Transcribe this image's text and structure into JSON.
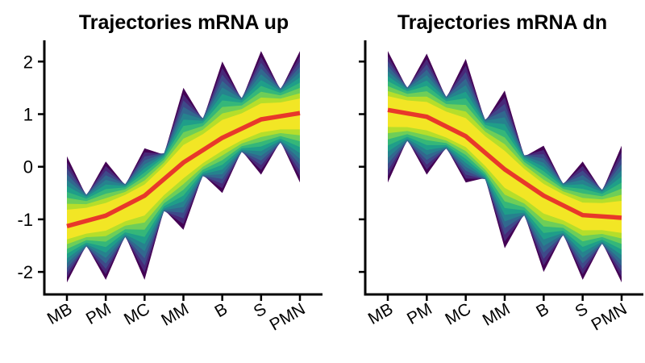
{
  "chart_data": [
    {
      "type": "line",
      "title": "Trajectories mRNA up",
      "categories": [
        "MB",
        "PM",
        "MC",
        "MM",
        "B",
        "S",
        "PMN"
      ],
      "ylim": [
        -2.3,
        2.35
      ],
      "yticks": [
        "-2",
        "-1",
        "0",
        "1",
        "2"
      ],
      "grid": false,
      "mean_line": {
        "color": "#e8382a",
        "values": [
          -1.13,
          -0.93,
          -0.55,
          0.08,
          0.55,
          0.9,
          1.02
        ]
      },
      "trajectory_range": {
        "max": [
          0.2,
          0.1,
          0.35,
          1.5,
          2.0,
          2.2,
          2.2
        ],
        "min": [
          -2.2,
          -2.15,
          -2.15,
          -1.2,
          -0.5,
          -0.15,
          -0.3
        ]
      },
      "colormap": [
        "#440154",
        "#482878",
        "#3e4989",
        "#31688e",
        "#26828e",
        "#1f9e89",
        "#35b779",
        "#6ece58",
        "#b5de2b",
        "#fde725"
      ]
    },
    {
      "type": "line",
      "title": "Trajectories mRNA dn",
      "categories": [
        "MB",
        "PM",
        "MC",
        "MM",
        "B",
        "S",
        "PMN"
      ],
      "ylim": [
        -2.3,
        2.35
      ],
      "yticks": [
        "-2",
        "-1",
        "0",
        "1",
        "2"
      ],
      "grid": false,
      "mean_line": {
        "color": "#e8382a",
        "values": [
          1.08,
          0.95,
          0.58,
          -0.05,
          -0.55,
          -0.92,
          -0.97
        ]
      },
      "trajectory_range": {
        "max": [
          2.2,
          2.15,
          2.05,
          1.45,
          0.4,
          0.1,
          0.4
        ],
        "min": [
          -0.3,
          -0.15,
          -0.3,
          -1.55,
          -2.0,
          -2.15,
          -2.2
        ]
      },
      "colormap": [
        "#440154",
        "#482878",
        "#3e4989",
        "#31688e",
        "#26828e",
        "#1f9e89",
        "#35b779",
        "#6ece58",
        "#b5de2b",
        "#fde725"
      ]
    }
  ]
}
